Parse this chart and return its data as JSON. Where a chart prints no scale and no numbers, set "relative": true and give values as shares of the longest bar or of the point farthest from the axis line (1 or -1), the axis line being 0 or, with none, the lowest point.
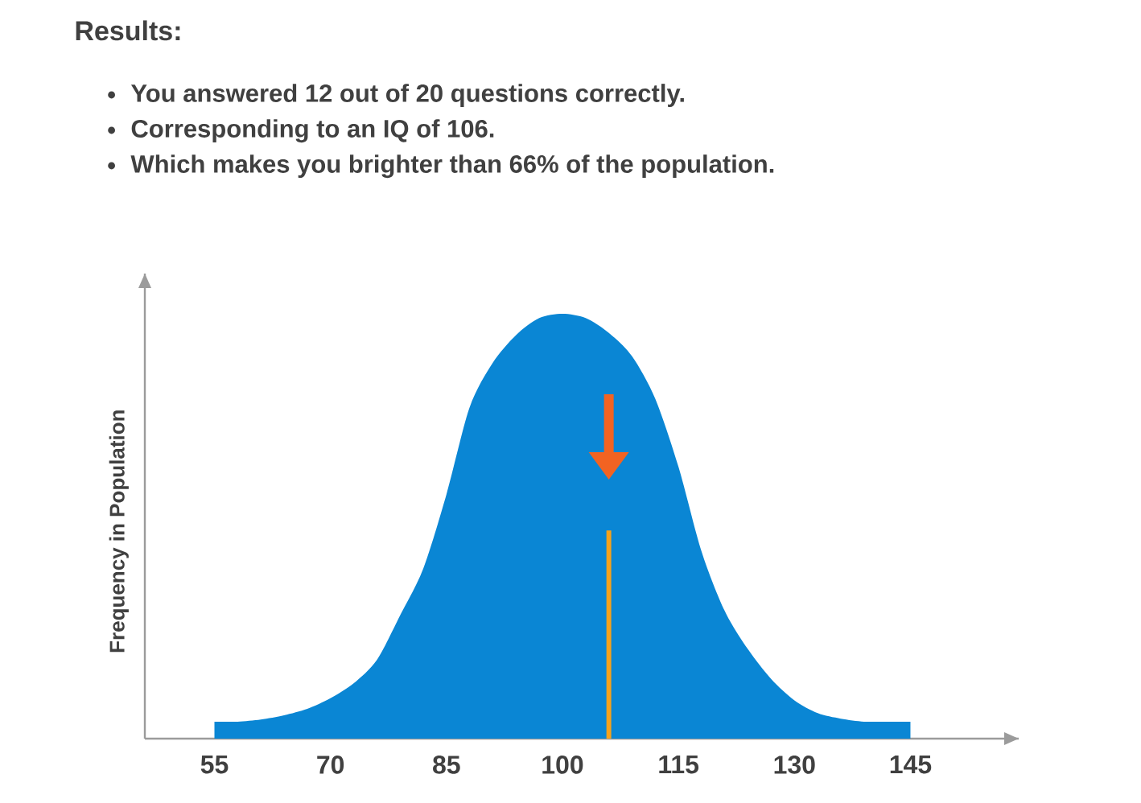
{
  "chart_data": {
    "type": "area",
    "title": "Results:",
    "annotations": [
      "You answered 12 out of 20 questions correctly.",
      "Corresponding to an IQ of 106.",
      "Which makes you brighter than 66% of the population."
    ],
    "ylabel": "Frequency in Population",
    "x": [
      55,
      58,
      61,
      64,
      67,
      70,
      73,
      76,
      79,
      82,
      85,
      88,
      91,
      94,
      97,
      100,
      103,
      106,
      109,
      112,
      115,
      118,
      121,
      124,
      127,
      130,
      133,
      136,
      139,
      142,
      145
    ],
    "values": [
      0.04,
      0.04,
      0.045,
      0.055,
      0.07,
      0.095,
      0.13,
      0.185,
      0.29,
      0.4,
      0.575,
      0.78,
      0.885,
      0.95,
      0.99,
      1,
      0.99,
      0.955,
      0.9,
      0.8,
      0.64,
      0.44,
      0.3,
      0.21,
      0.14,
      0.09,
      0.06,
      0.047,
      0.04,
      0.04,
      0.04
    ],
    "color": "#0a86d4",
    "relative": true,
    "xlim": [
      46,
      159
    ],
    "xticks": [
      55,
      70,
      85,
      100,
      115,
      130,
      145
    ],
    "ref_lines": [
      {
        "axis": "x",
        "value": 106,
        "color": "#f7a21b"
      }
    ]
  }
}
